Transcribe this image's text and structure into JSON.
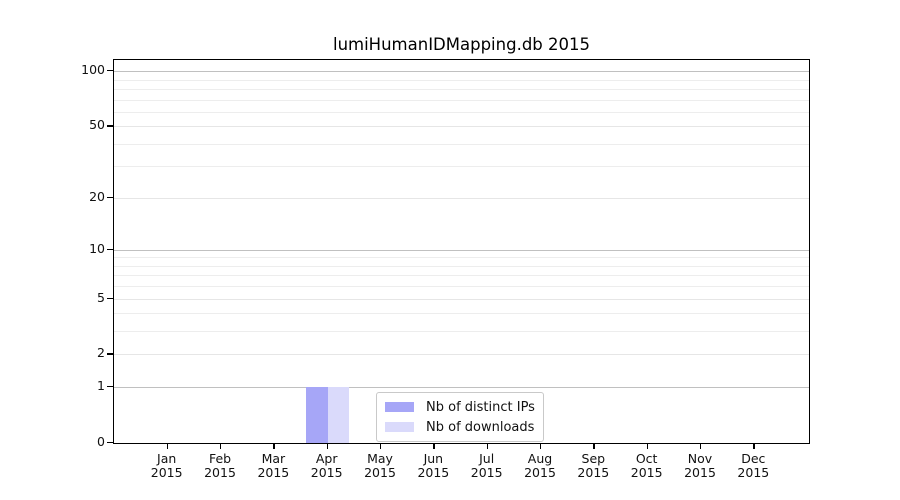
{
  "figure": {
    "title": "lumiHumanIDMapping.db 2015"
  },
  "chart_data": {
    "type": "bar",
    "title": "lumiHumanIDMapping.db 2015",
    "x_categories_line1": [
      "Jan",
      "Feb",
      "Mar",
      "Apr",
      "May",
      "Jun",
      "Jul",
      "Aug",
      "Sep",
      "Oct",
      "Nov",
      "Dec"
    ],
    "x_categories_line2": "2015",
    "series": [
      {
        "name": "Nb of distinct IPs",
        "color": "#a6a6f7",
        "values": [
          0,
          0,
          0,
          1,
          0,
          0,
          0,
          0,
          0,
          0,
          0,
          0
        ]
      },
      {
        "name": "Nb of downloads",
        "color": "#dadafb",
        "values": [
          0,
          0,
          0,
          1,
          0,
          0,
          0,
          0,
          0,
          0,
          0,
          0
        ]
      }
    ],
    "y_axis": {
      "scale": "log10(1+y)",
      "major_ticks": [
        0,
        1,
        2,
        5,
        10,
        20,
        50,
        100
      ],
      "minor_gridlines": [
        3,
        4,
        6,
        7,
        8,
        9,
        30,
        40,
        60,
        70,
        80,
        90
      ],
      "top_value": 115
    },
    "legend": {
      "position": "lower-center",
      "items": [
        {
          "label": "Nb of distinct IPs",
          "color": "#a6a6f7"
        },
        {
          "label": "Nb of downloads",
          "color": "#dadafb"
        }
      ]
    },
    "grid": "horizontal-only",
    "colors": {
      "decade_gridline": "#c0c0c0",
      "light_gridline": "#ededed",
      "axis": "#000000",
      "background": "#ffffff"
    }
  }
}
